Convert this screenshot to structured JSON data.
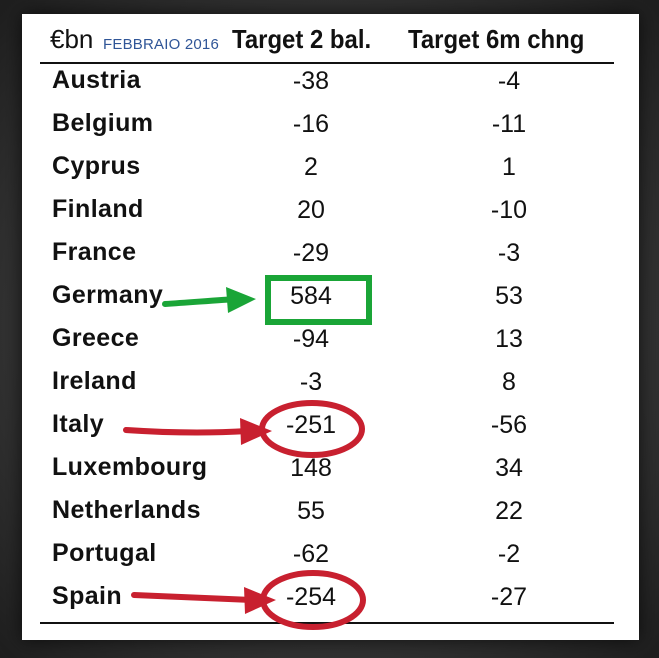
{
  "table": {
    "unit_label": "€bn",
    "annotation": "FEBBRAIO 2016",
    "columns": [
      "Target 2 bal.",
      "Target 6m chng"
    ],
    "rows": [
      {
        "country": "Austria",
        "target2_bal": "-38",
        "target_6m_chng": "-4"
      },
      {
        "country": "Belgium",
        "target2_bal": "-16",
        "target_6m_chng": "-11"
      },
      {
        "country": "Cyprus",
        "target2_bal": "2",
        "target_6m_chng": "1"
      },
      {
        "country": "Finland",
        "target2_bal": "20",
        "target_6m_chng": "-10"
      },
      {
        "country": "France",
        "target2_bal": "-29",
        "target_6m_chng": "-3"
      },
      {
        "country": "Germany",
        "target2_bal": "584",
        "target_6m_chng": "53"
      },
      {
        "country": "Greece",
        "target2_bal": "-94",
        "target_6m_chng": "13"
      },
      {
        "country": "Ireland",
        "target2_bal": "-3",
        "target_6m_chng": "8"
      },
      {
        "country": "Italy",
        "target2_bal": "-251",
        "target_6m_chng": "-56"
      },
      {
        "country": "Luxembourg",
        "target2_bal": "148",
        "target_6m_chng": "34"
      },
      {
        "country": "Netherlands",
        "target2_bal": "55",
        "target_6m_chng": "22"
      },
      {
        "country": "Portugal",
        "target2_bal": "-62",
        "target_6m_chng": "-2"
      },
      {
        "country": "Spain",
        "target2_bal": "-254",
        "target_6m_chng": "-27"
      }
    ]
  },
  "highlights": {
    "positive_color": "#1aa537",
    "negative_color": "#c8202f",
    "positive_country": "Germany",
    "negative_countries": [
      "Italy",
      "Spain"
    ]
  }
}
